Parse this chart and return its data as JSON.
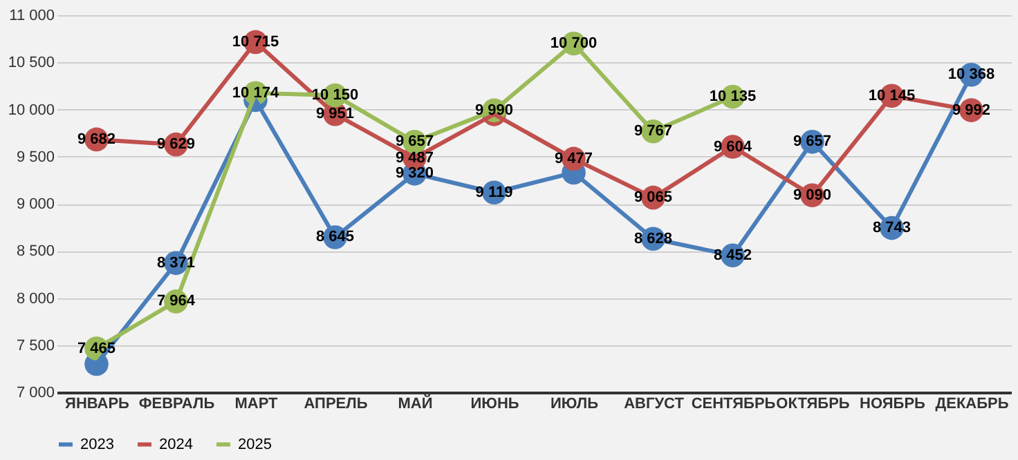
{
  "chart_data": {
    "type": "line",
    "categories": [
      "ЯНВАРЬ",
      "ФЕВРАЛЬ",
      "МАРТ",
      "АПРЕЛЬ",
      "МАЙ",
      "ИЮНЬ",
      "ИЮЛЬ",
      "АВГУСТ",
      "СЕНТЯБРЬ",
      "ОКТЯБРЬ",
      "НОЯБРЬ",
      "ДЕКАБРЬ"
    ],
    "series": [
      {
        "name": "2023",
        "color": "#4a7ebb",
        "values": [
          7300,
          8371,
          10100,
          8645,
          9320,
          9119,
          9330,
          8628,
          8452,
          9657,
          8743,
          10368
        ],
        "value_labels": [
          null,
          "8 371",
          null,
          "8 645",
          "9 320",
          "9 119",
          null,
          "8 628",
          "8 452",
          "9 657",
          "8 743",
          "10 368"
        ]
      },
      {
        "name": "2024",
        "color": "#c0504d",
        "values": [
          9682,
          9629,
          10715,
          9951,
          9487,
          9950,
          9477,
          9065,
          9604,
          9090,
          10145,
          9992
        ],
        "value_labels": [
          "9 682",
          "9 629",
          "10 715",
          "9 951",
          "9 487",
          null,
          "9 477",
          "9 065",
          "9 604",
          "9 090",
          "10 145",
          "9 992"
        ]
      },
      {
        "name": "2025",
        "color": "#9bbb59",
        "values": [
          7465,
          7964,
          10174,
          10150,
          9657,
          9990,
          10700,
          9767,
          10135,
          null,
          null,
          null
        ],
        "value_labels": [
          "7 465",
          "7 964",
          "10 174",
          "10 150",
          "9 657",
          "9 990",
          "10 700",
          "9 767",
          "10 135",
          null,
          null,
          null
        ]
      }
    ],
    "ylim": [
      7000,
      11000
    ],
    "yticks": [
      {
        "value": 7000,
        "label": "7 000"
      },
      {
        "value": 7500,
        "label": "7 500"
      },
      {
        "value": 8000,
        "label": "8 000"
      },
      {
        "value": 8500,
        "label": "8 500"
      },
      {
        "value": 9000,
        "label": "9 000"
      },
      {
        "value": 9500,
        "label": "9 500"
      },
      {
        "value": 10000,
        "label": "10 000"
      },
      {
        "value": 10500,
        "label": "10 500"
      },
      {
        "value": 11000,
        "label": "11 000"
      }
    ],
    "grid": "y",
    "legend": "bottom",
    "marker": "circle",
    "line_style": "solid"
  }
}
